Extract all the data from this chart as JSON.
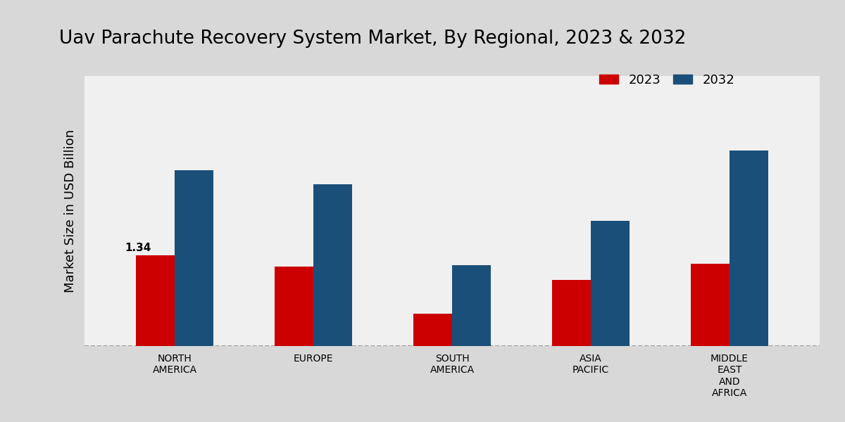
{
  "title": "Uav Parachute Recovery System Market, By Regional, 2023 & 2032",
  "ylabel": "Market Size in USD Billion",
  "categories": [
    "NORTH\nAMERICA",
    "EUROPE",
    "SOUTH\nAMERICA",
    "ASIA\nPACIFIC",
    "MIDDLE\nEAST\nAND\nAFRICA"
  ],
  "values_2023": [
    1.34,
    1.18,
    0.48,
    0.98,
    1.22
  ],
  "values_2032": [
    2.6,
    2.4,
    1.2,
    1.85,
    2.9
  ],
  "color_2023": "#cc0000",
  "color_2032": "#1a4f7a",
  "bar_annotation": "1.34",
  "annotation_region": 0,
  "ylim": [
    0,
    4.0
  ],
  "legend_labels": [
    "2023",
    "2032"
  ],
  "outer_bg": "#d8d8d8",
  "plot_bg": "#f0f0f0",
  "dashed_line_y": 0,
  "bar_width": 0.28,
  "title_fontsize": 19,
  "axis_label_fontsize": 13,
  "tick_fontsize": 10,
  "legend_fontsize": 13
}
